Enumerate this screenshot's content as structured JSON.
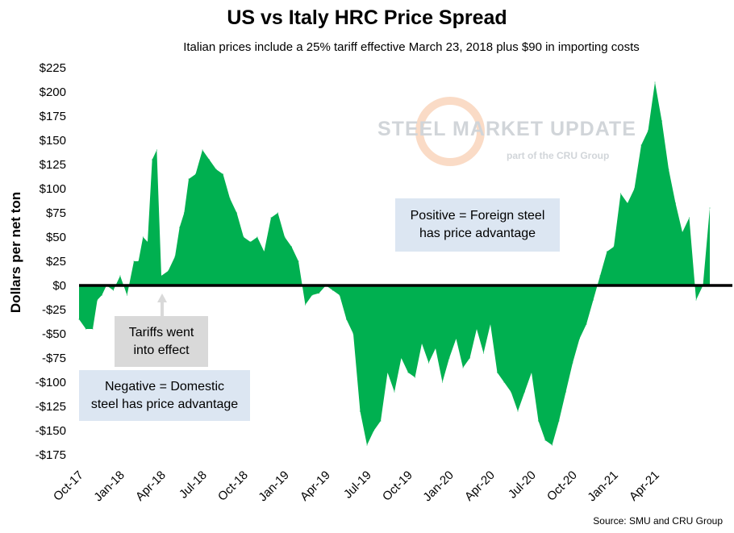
{
  "chart_data": {
    "type": "area",
    "title": "US vs Italy HRC Price Spread",
    "subtitle": "Italian prices include a 25% tariff effective March 23, 2018 plus $90 in importing costs",
    "ylabel": "Dollars per net ton",
    "ylim": [
      -175,
      225
    ],
    "ytick_labels": [
      "$225",
      "$200",
      "$175",
      "$150",
      "$125",
      "$100",
      "$75",
      "$50",
      "$25",
      "$0",
      "-$25",
      "-$50",
      "-$75",
      "-$100",
      "-$125",
      "-$150",
      "-$175"
    ],
    "ytick_values": [
      225,
      200,
      175,
      150,
      125,
      100,
      75,
      50,
      25,
      0,
      -25,
      -50,
      -75,
      -100,
      -125,
      -150,
      -175
    ],
    "xtick_labels": [
      "Oct-17",
      "Jan-18",
      "Apr-18",
      "Jul-18",
      "Oct-18",
      "Jan-19",
      "Apr-19",
      "Jul-19",
      "Oct-19",
      "Jan-20",
      "Apr-20",
      "Jul-20",
      "Oct-20",
      "Jan-21",
      "Apr-21"
    ],
    "xtick_dates": [
      "2017-10",
      "2018-01",
      "2018-04",
      "2018-07",
      "2018-10",
      "2019-01",
      "2019-04",
      "2019-07",
      "2019-10",
      "2020-01",
      "2020-04",
      "2020-07",
      "2020-10",
      "2021-01",
      "2021-04"
    ],
    "x_range": [
      "2017-10",
      "2021-08"
    ],
    "fill_color": "#00b050",
    "zero_line_color": "#000000",
    "series": [
      {
        "x": [
          "2017-10",
          "2017-10",
          "2017-11",
          "2017-11",
          "2017-11",
          "2017-12",
          "2017-12",
          "2018-01",
          "2018-01",
          "2018-02",
          "2018-02",
          "2018-02",
          "2018-03",
          "2018-03",
          "2018-03",
          "2018-04",
          "2018-04",
          "2018-05",
          "2018-05",
          "2018-05",
          "2018-06",
          "2018-06",
          "2018-07",
          "2018-07",
          "2018-08",
          "2018-08",
          "2018-09",
          "2018-09",
          "2018-10",
          "2018-10",
          "2018-11",
          "2018-11",
          "2018-12",
          "2018-12",
          "2019-01",
          "2019-01",
          "2019-02",
          "2019-02",
          "2019-03",
          "2019-03",
          "2019-04",
          "2019-04",
          "2019-05",
          "2019-05",
          "2019-06",
          "2019-06",
          "2019-07",
          "2019-07",
          "2019-08",
          "2019-08",
          "2019-09",
          "2019-09",
          "2019-10",
          "2019-10",
          "2019-11",
          "2019-11",
          "2019-12",
          "2019-12",
          "2020-01",
          "2020-01",
          "2020-02",
          "2020-02",
          "2020-03",
          "2020-03",
          "2020-04",
          "2020-04",
          "2020-05",
          "2020-05",
          "2020-06",
          "2020-06",
          "2020-07",
          "2020-07",
          "2020-08",
          "2020-08",
          "2020-09",
          "2020-09",
          "2020-10",
          "2020-10",
          "2020-11",
          "2020-11",
          "2020-12",
          "2020-12",
          "2021-01",
          "2021-01",
          "2021-02",
          "2021-02",
          "2021-03",
          "2021-03",
          "2021-04",
          "2021-04",
          "2021-05",
          "2021-05",
          "2021-06",
          "2021-06",
          "2021-07",
          "2021-07",
          "2021-08"
        ],
        "values": [
          -35,
          -45,
          -45,
          -15,
          -10,
          0,
          -5,
          10,
          -10,
          25,
          25,
          50,
          45,
          130,
          140,
          10,
          15,
          30,
          60,
          75,
          110,
          115,
          140,
          130,
          120,
          115,
          90,
          75,
          50,
          45,
          50,
          35,
          70,
          75,
          50,
          40,
          25,
          -20,
          -10,
          -8,
          0,
          -5,
          -10,
          -35,
          -50,
          -130,
          -165,
          -150,
          -140,
          -90,
          -110,
          -75,
          -90,
          -95,
          -60,
          -80,
          -65,
          -100,
          -75,
          -55,
          -85,
          -75,
          -45,
          -70,
          -40,
          -90,
          -100,
          -110,
          -130,
          -110,
          -90,
          -140,
          -160,
          -165,
          -140,
          -110,
          -80,
          -55,
          -40,
          -15,
          10,
          35,
          40,
          95,
          85,
          100,
          145,
          160,
          210,
          170,
          120,
          85,
          55,
          70,
          -15,
          0,
          80
        ]
      }
    ],
    "annotations": {
      "positive_line1": "Positive = Foreign steel",
      "positive_line2": "has price advantage",
      "negative_line1": "Negative = Domestic",
      "negative_line2": "steel has price advantage",
      "tariff_line1": "Tariffs went",
      "tariff_line2": "into effect"
    },
    "watermark": {
      "name": "STEEL MARKET UPDATE",
      "tagline": "part of the CRU Group"
    },
    "source": "Source: SMU and CRU Group"
  }
}
